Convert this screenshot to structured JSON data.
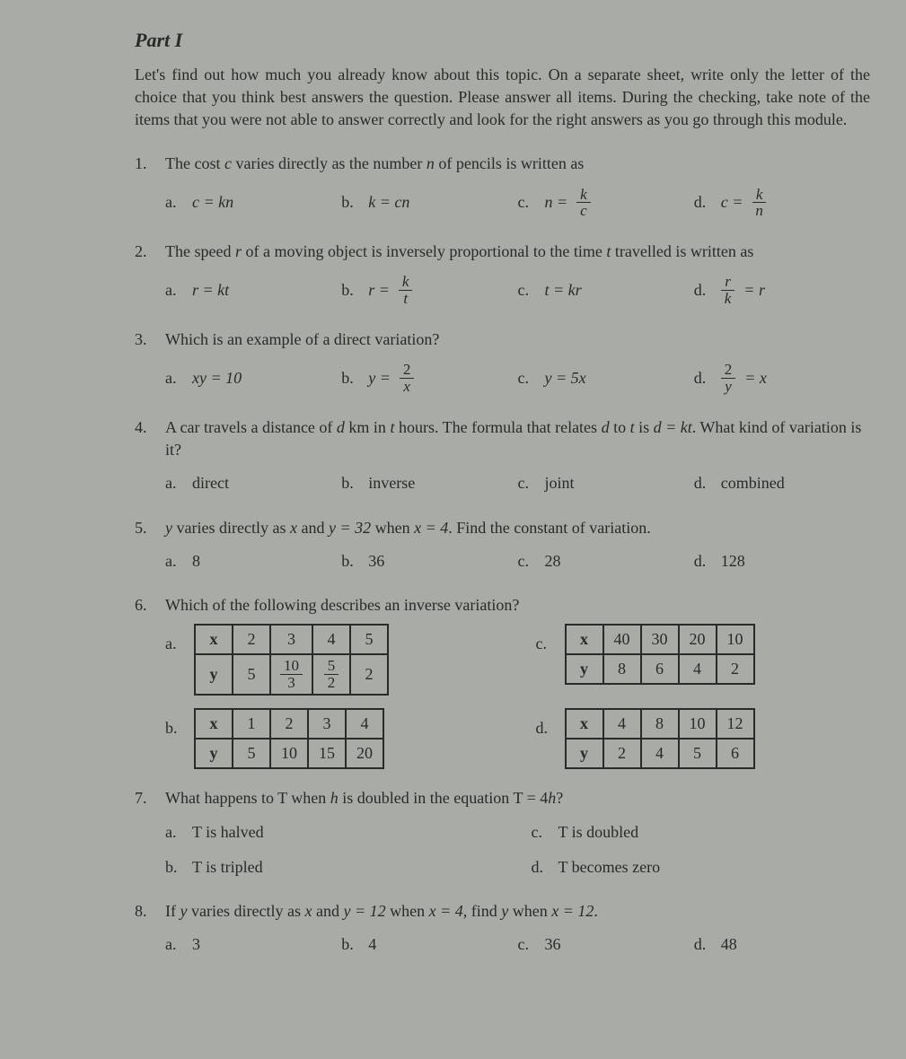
{
  "part_title": "Part I",
  "intro": "Let's find out how much you already know about this topic. On a separate sheet, write only the letter of the choice that you think best answers the question. Please answer all items. During the checking, take note of the items that you were not able to answer correctly and look for the right answers as you go through this module.",
  "q1": {
    "stem_pre": "The cost ",
    "stem_c": "c",
    "stem_mid": " varies directly as the number ",
    "stem_n": "n",
    "stem_post": " of pencils is written as",
    "a_lbl": "a.",
    "a_val": "c = kn",
    "b_lbl": "b.",
    "b_val": "k = cn",
    "c_lbl": "c.",
    "c_pre": "n = ",
    "c_num": "k",
    "c_den": "c",
    "d_lbl": "d.",
    "d_pre": "c = ",
    "d_num": "k",
    "d_den": "n"
  },
  "q2": {
    "stem_pre": "The speed ",
    "stem_r": "r",
    "stem_mid1": " of a moving object is inversely proportional to the time ",
    "stem_t": "t",
    "stem_post": " travelled is written as",
    "a_lbl": "a.",
    "a_val": "r = kt",
    "b_lbl": "b.",
    "b_pre": "r = ",
    "b_num": "k",
    "b_den": "t",
    "c_lbl": "c.",
    "c_val": "t = kr",
    "d_lbl": "d.",
    "d_num": "r",
    "d_den": "k",
    "d_post": " = r"
  },
  "q3": {
    "stem": "Which is an example of a direct variation?",
    "a_lbl": "a.",
    "a_val": "xy = 10",
    "b_lbl": "b.",
    "b_pre": "y = ",
    "b_num": "2",
    "b_den": "x",
    "c_lbl": "c.",
    "c_val": "y = 5x",
    "d_lbl": "d.",
    "d_num": "2",
    "d_den": "y",
    "d_post": " = x"
  },
  "q4": {
    "stem_pre": "A car travels a distance of ",
    "stem_d": "d",
    "stem_mid1": " km in ",
    "stem_t": "t",
    "stem_mid2": " hours.  The formula that relates ",
    "stem_d2": "d",
    "stem_mid3": " to ",
    "stem_t2": "t",
    "stem_mid4": " is ",
    "stem_eq": "d = kt",
    "stem_post": ". What kind of variation is it?",
    "a_lbl": "a.",
    "a_val": "direct",
    "b_lbl": "b.",
    "b_val": "inverse",
    "c_lbl": "c.",
    "c_val": "joint",
    "d_lbl": "d.",
    "d_val": "combined"
  },
  "q5": {
    "stem_pre": "y",
    "stem_mid1": " varies directly as ",
    "stem_x": "x",
    "stem_mid2": " and ",
    "stem_eq1": "y = 32",
    "stem_mid3": " when ",
    "stem_eq2": "x = 4",
    "stem_post": ". Find the constant of variation.",
    "a_lbl": "a.",
    "a_val": "8",
    "b_lbl": "b.",
    "b_val": "36",
    "c_lbl": "c.",
    "c_val": "28",
    "d_lbl": "d.",
    "d_val": "128"
  },
  "q6": {
    "stem": "Which of the following describes an inverse variation?",
    "a_lbl": "a.",
    "c_lbl": "c.",
    "b_lbl": "b.",
    "d_lbl": "d.",
    "hx": "x",
    "hy": "y",
    "a_x": [
      "2",
      "3",
      "4",
      "5"
    ],
    "a_y0": "5",
    "a_y1_num": "10",
    "a_y1_den": "3",
    "a_y2_num": "5",
    "a_y2_den": "2",
    "a_y3": "2",
    "c_x": [
      "40",
      "30",
      "20",
      "10"
    ],
    "c_y": [
      "8",
      "6",
      "4",
      "2"
    ],
    "b_x": [
      "1",
      "2",
      "3",
      "4"
    ],
    "b_y": [
      "5",
      "10",
      "15",
      "20"
    ],
    "d_x": [
      "4",
      "8",
      "10",
      "12"
    ],
    "d_y": [
      "2",
      "4",
      "5",
      "6"
    ]
  },
  "q7": {
    "stem_pre": "What happens to T when ",
    "stem_h": "h",
    "stem_mid": " is doubled in the equation T = 4",
    "stem_h2": "h",
    "stem_post": "?",
    "a_lbl": "a.",
    "a_val": "T is halved",
    "b_lbl": "b.",
    "b_val": "T is tripled",
    "c_lbl": "c.",
    "c_val": "T is doubled",
    "d_lbl": "d.",
    "d_val": "T becomes zero"
  },
  "q8": {
    "stem_pre": "If ",
    "stem_y": "y",
    "stem_mid1": " varies directly as ",
    "stem_x": "x",
    "stem_mid2": " and ",
    "stem_eq1": "y = 12",
    "stem_mid3": " when ",
    "stem_eq2": "x = 4",
    "stem_mid4": ", find ",
    "stem_y2": "y",
    "stem_mid5": " when ",
    "stem_eq3": "x = 12",
    "stem_post": ".",
    "a_lbl": "a.",
    "a_val": "3",
    "b_lbl": "b.",
    "b_val": "4",
    "c_lbl": "c.",
    "c_val": "36",
    "d_lbl": "d.",
    "d_val": "48"
  }
}
